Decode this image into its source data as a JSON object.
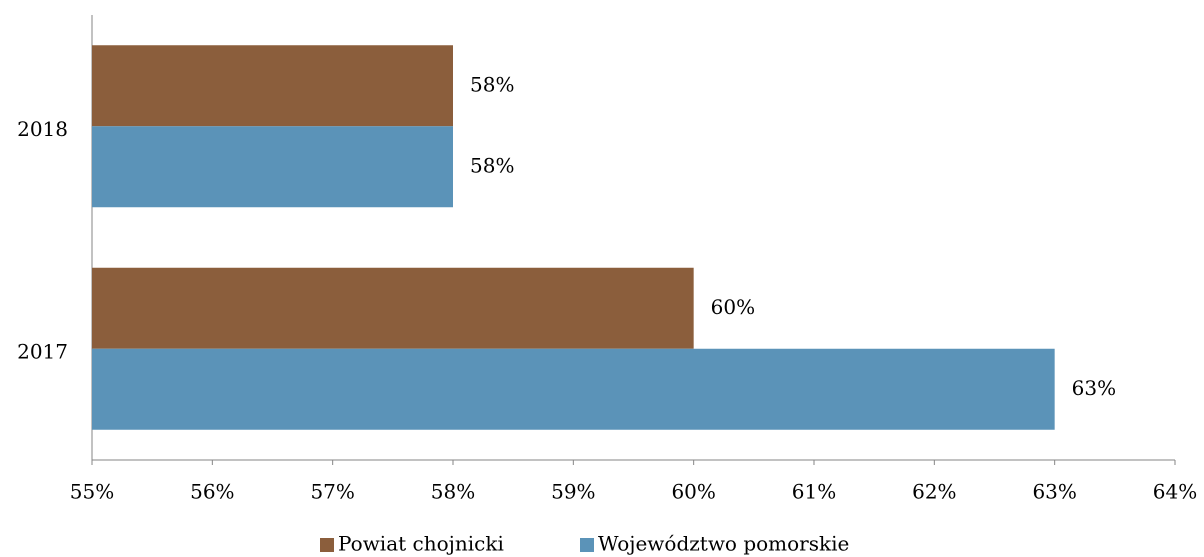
{
  "chart_data": {
    "type": "bar",
    "orientation": "horizontal",
    "categories": [
      "2018",
      "2017"
    ],
    "series": [
      {
        "name": "Powiat chojnicki",
        "color": "#8b5e3c",
        "values": [
          58,
          60
        ],
        "value_labels": [
          "58%",
          "60%"
        ]
      },
      {
        "name": "Województwo pomorskie",
        "color": "#5b93b8",
        "values": [
          58,
          63
        ],
        "value_labels": [
          "58%",
          "63%"
        ]
      }
    ],
    "xlim": [
      55,
      64
    ],
    "xticks": [
      {
        "value": 55,
        "label": "55%"
      },
      {
        "value": 56,
        "label": "56%"
      },
      {
        "value": 57,
        "label": "57%"
      },
      {
        "value": 58,
        "label": "58%"
      },
      {
        "value": 59,
        "label": "59%"
      },
      {
        "value": 60,
        "label": "60%"
      },
      {
        "value": 61,
        "label": "61%"
      },
      {
        "value": 62,
        "label": "62%"
      },
      {
        "value": 63,
        "label": "63%"
      },
      {
        "value": 64,
        "label": "64%"
      }
    ],
    "legend": "bottom"
  }
}
